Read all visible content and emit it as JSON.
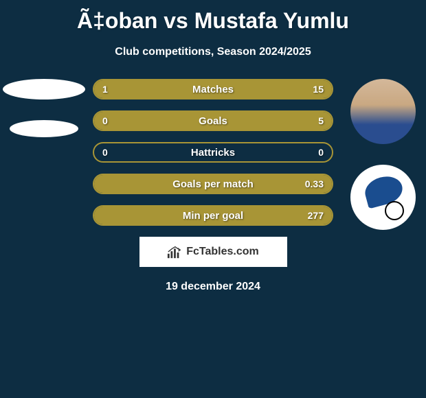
{
  "title": "Ã‡oban vs Mustafa Yumlu",
  "subtitle": "Club competitions, Season 2024/2025",
  "date": "19 december 2024",
  "branding": "FcTables.com",
  "colors": {
    "background": "#0d2d42",
    "border": "#a89536",
    "fill": "#a89536",
    "text": "#ffffff"
  },
  "stats": [
    {
      "label": "Matches",
      "left_value": "1",
      "right_value": "15",
      "left_fill_pct": 6,
      "right_fill_pct": 94,
      "border_color": "#a89536",
      "fill_color": "#a89536"
    },
    {
      "label": "Goals",
      "left_value": "0",
      "right_value": "5",
      "left_fill_pct": 0,
      "right_fill_pct": 100,
      "border_color": "#a89536",
      "fill_color": "#a89536"
    },
    {
      "label": "Hattricks",
      "left_value": "0",
      "right_value": "0",
      "left_fill_pct": 0,
      "right_fill_pct": 0,
      "border_color": "#a89536",
      "fill_color": "#a89536"
    },
    {
      "label": "Goals per match",
      "left_value": "",
      "right_value": "0.33",
      "left_fill_pct": 0,
      "right_fill_pct": 100,
      "border_color": "#a89536",
      "fill_color": "#a89536"
    },
    {
      "label": "Min per goal",
      "left_value": "",
      "right_value": "277",
      "left_fill_pct": 0,
      "right_fill_pct": 100,
      "border_color": "#a89536",
      "fill_color": "#a89536"
    }
  ]
}
